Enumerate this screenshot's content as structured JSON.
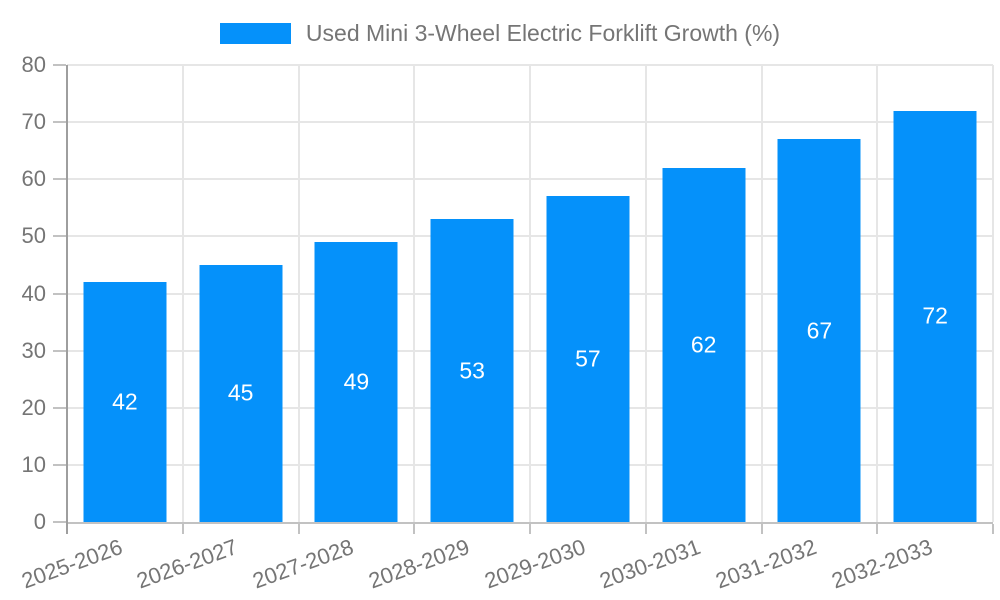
{
  "chart_data": {
    "type": "bar",
    "categories": [
      "2025-2026",
      "2026-2027",
      "2027-2028",
      "2028-2029",
      "2029-2030",
      "2030-2031",
      "2031-2032",
      "2032-2033"
    ],
    "series": [
      {
        "name": "Used Mini 3-Wheel Electric Forklift Growth (%)",
        "values": [
          42,
          45,
          49,
          53,
          57,
          62,
          67,
          72
        ]
      }
    ],
    "title": "",
    "xlabel": "",
    "ylabel": "",
    "ylim": [
      0,
      80
    ],
    "ytick_step": 10,
    "grid": true,
    "legend_position": "top-center",
    "value_labels": "inside bars, centered, white",
    "colors": {
      "bar": "#0591fa",
      "grid": "#e6e6e6",
      "y_axis": "#9e9e9e",
      "x_axis": "#c2c2c2",
      "tick_text": "#757575",
      "value_text": "#ffffff"
    }
  }
}
